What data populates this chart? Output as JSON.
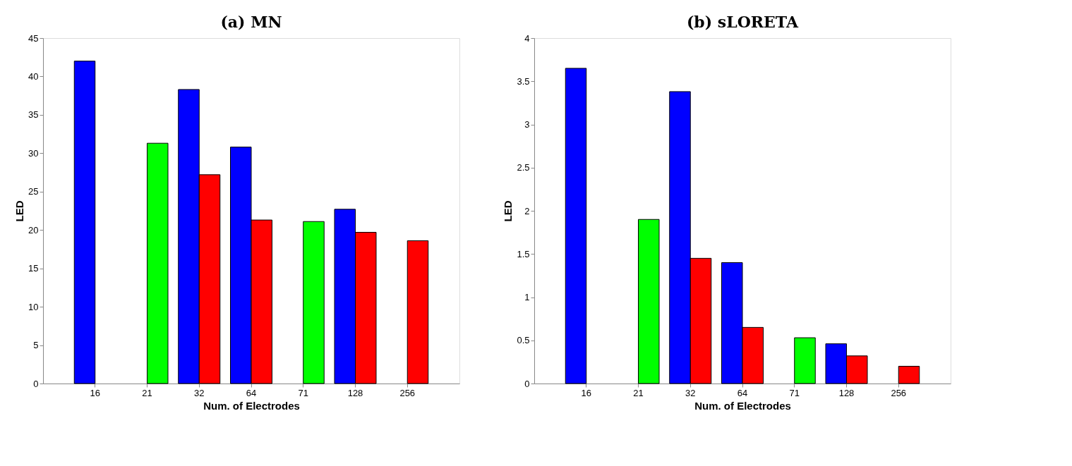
{
  "chart_data": [
    {
      "type": "bar",
      "title": "(a) MN",
      "xlabel": "Num. of Electrodes",
      "ylabel": "LED",
      "categories": [
        "16",
        "21",
        "32",
        "64",
        "71",
        "128",
        "256"
      ],
      "ylim": [
        0,
        45
      ],
      "yticks": [
        0,
        5,
        10,
        15,
        20,
        25,
        30,
        35,
        40,
        45
      ],
      "grid": false,
      "legend": false,
      "series": [
        {
          "color": "#0000ff",
          "values": [
            42,
            null,
            38.3,
            30.8,
            null,
            22.7,
            null
          ]
        },
        {
          "color": "#00ff00",
          "values": [
            null,
            31.3,
            null,
            null,
            21.1,
            null,
            null
          ]
        },
        {
          "color": "#ff0000",
          "values": [
            null,
            null,
            27.2,
            21.3,
            null,
            19.7,
            18.6
          ]
        }
      ]
    },
    {
      "type": "bar",
      "title": "(b) sLORETA",
      "xlabel": "Num. of Electrodes",
      "ylabel": "LED",
      "categories": [
        "16",
        "21",
        "32",
        "64",
        "71",
        "128",
        "256"
      ],
      "ylim": [
        0,
        4
      ],
      "yticks": [
        0,
        0.5,
        1,
        1.5,
        2,
        2.5,
        3,
        3.5,
        4
      ],
      "grid": false,
      "legend": false,
      "series": [
        {
          "color": "#0000ff",
          "values": [
            3.65,
            null,
            3.38,
            1.4,
            null,
            0.46,
            null
          ]
        },
        {
          "color": "#00ff00",
          "values": [
            null,
            1.9,
            null,
            null,
            0.53,
            null,
            null
          ]
        },
        {
          "color": "#ff0000",
          "values": [
            null,
            null,
            1.45,
            0.65,
            null,
            0.32,
            0.2
          ]
        }
      ]
    }
  ]
}
